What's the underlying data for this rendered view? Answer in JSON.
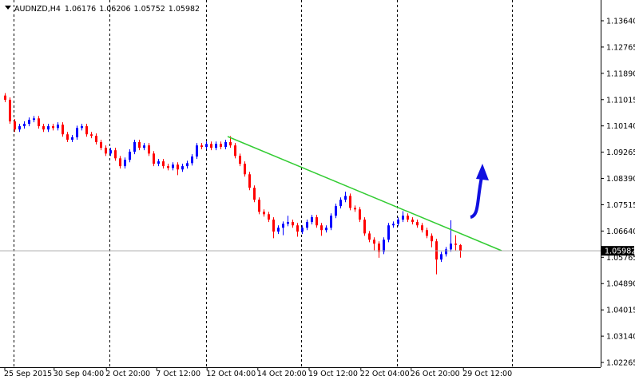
{
  "chart_data": {
    "type": "candlestick",
    "symbol": "AUDNZD,H4",
    "candles": [
      [
        1.1115,
        1.1123,
        1.1093,
        1.1101
      ],
      [
        1.1101,
        1.1109,
        1.1021,
        1.1029
      ],
      [
        1.1029,
        1.1037,
        1.0994,
        1.1002
      ],
      [
        1.1002,
        1.1021,
        1.0994,
        1.1013
      ],
      [
        1.1013,
        1.1029,
        1.1005,
        1.1021
      ],
      [
        1.1021,
        1.1042,
        1.1013,
        1.1034
      ],
      [
        1.1034,
        1.1047,
        1.1026,
        1.1039
      ],
      [
        1.1039,
        1.1047,
        1.1005,
        1.1013
      ],
      [
        1.1013,
        1.1021,
        1.0994,
        1.1002
      ],
      [
        1.1002,
        1.1021,
        1.0994,
        1.1013
      ],
      [
        1.1013,
        1.1021,
        1.0999,
        1.1007
      ],
      [
        1.1007,
        1.1026,
        1.0999,
        1.1018
      ],
      [
        1.1018,
        1.1026,
        1.0978,
        1.0986
      ],
      [
        1.0986,
        1.0994,
        1.096,
        1.0968
      ],
      [
        1.0968,
        1.0984,
        1.096,
        1.0976
      ],
      [
        1.0976,
        1.1015,
        1.0968,
        1.1007
      ],
      [
        1.1007,
        1.1021,
        1.0999,
        1.1013
      ],
      [
        1.1013,
        1.1021,
        1.0978,
        1.0986
      ],
      [
        1.0986,
        1.0994,
        1.0973,
        1.0981
      ],
      [
        1.0981,
        1.0989,
        1.0952,
        1.096
      ],
      [
        1.096,
        1.0968,
        1.0933,
        1.0941
      ],
      [
        1.0941,
        1.0949,
        1.0914,
        1.0922
      ],
      [
        1.0922,
        1.0941,
        1.0914,
        1.0933
      ],
      [
        1.0933,
        1.0941,
        1.0898,
        1.0906
      ],
      [
        1.0906,
        1.0914,
        1.0872,
        1.088
      ],
      [
        1.088,
        1.0909,
        1.0872,
        1.0901
      ],
      [
        1.0901,
        1.0936,
        1.0893,
        1.0928
      ],
      [
        1.0928,
        1.0968,
        1.092,
        1.096
      ],
      [
        1.096,
        1.0968,
        1.0933,
        1.0941
      ],
      [
        1.0941,
        1.0957,
        1.0933,
        1.0949
      ],
      [
        1.0949,
        1.0957,
        1.0914,
        1.0922
      ],
      [
        1.0922,
        1.093,
        1.088,
        1.0888
      ],
      [
        1.0888,
        1.0904,
        1.088,
        1.0896
      ],
      [
        1.0896,
        1.0904,
        1.0872,
        1.088
      ],
      [
        1.088,
        1.0888,
        1.0866,
        1.0874
      ],
      [
        1.0874,
        1.0893,
        1.0866,
        1.0885
      ],
      [
        1.0885,
        1.0893,
        1.085,
        1.0869
      ],
      [
        1.0869,
        1.0888,
        1.0861,
        1.088
      ],
      [
        1.088,
        1.0898,
        1.0872,
        1.089
      ],
      [
        1.089,
        1.092,
        1.0882,
        1.0912
      ],
      [
        1.0912,
        1.0957,
        1.0904,
        1.0949
      ],
      [
        1.0949,
        1.0957,
        1.0936,
        1.0944
      ],
      [
        1.0944,
        1.0962,
        1.0936,
        1.0954
      ],
      [
        1.0954,
        1.0962,
        1.0933,
        1.0941
      ],
      [
        1.0941,
        1.0962,
        1.0933,
        1.0954
      ],
      [
        1.0954,
        1.0962,
        1.0936,
        1.0944
      ],
      [
        1.0944,
        1.0968,
        1.0936,
        1.096
      ],
      [
        1.096,
        1.098,
        1.0941,
        1.0949
      ],
      [
        1.0949,
        1.0957,
        1.0906,
        1.0914
      ],
      [
        1.0914,
        1.0922,
        1.088,
        1.0888
      ],
      [
        1.0888,
        1.0896,
        1.0845,
        1.0853
      ],
      [
        1.0853,
        1.0861,
        1.08,
        1.0808
      ],
      [
        1.0808,
        1.0816,
        1.076,
        1.0768
      ],
      [
        1.0768,
        1.0776,
        1.072,
        1.0728
      ],
      [
        1.0728,
        1.0736,
        1.0712,
        1.072
      ],
      [
        1.072,
        1.0728,
        1.0694,
        1.0702
      ],
      [
        1.0702,
        1.071,
        1.064,
        1.0662
      ],
      [
        1.0662,
        1.0683,
        1.0654,
        1.0675
      ],
      [
        1.0675,
        1.0696,
        1.065,
        1.0688
      ],
      [
        1.0688,
        1.0715,
        1.068,
        1.0694
      ],
      [
        1.0694,
        1.0702,
        1.0675,
        1.0683
      ],
      [
        1.0683,
        1.0691,
        1.0645,
        1.0662
      ],
      [
        1.0662,
        1.0683,
        1.0654,
        1.0675
      ],
      [
        1.0675,
        1.0702,
        1.0667,
        1.0694
      ],
      [
        1.0694,
        1.0718,
        1.0686,
        1.071
      ],
      [
        1.071,
        1.0718,
        1.0675,
        1.0683
      ],
      [
        1.0683,
        1.0691,
        1.0648,
        1.0667
      ],
      [
        1.0667,
        1.0683,
        1.0659,
        1.0675
      ],
      [
        1.0675,
        1.0723,
        1.0667,
        1.0715
      ],
      [
        1.0715,
        1.0755,
        1.0707,
        1.0747
      ],
      [
        1.0747,
        1.0776,
        1.0739,
        1.0768
      ],
      [
        1.0768,
        1.0795,
        1.076,
        1.0781
      ],
      [
        1.0781,
        1.0789,
        1.0733,
        1.0741
      ],
      [
        1.0741,
        1.0749,
        1.0728,
        1.0736
      ],
      [
        1.0736,
        1.0744,
        1.0694,
        1.0702
      ],
      [
        1.0702,
        1.071,
        1.0648,
        1.0656
      ],
      [
        1.0656,
        1.0664,
        1.0627,
        1.0635
      ],
      [
        1.0635,
        1.0643,
        1.06,
        1.0622
      ],
      [
        1.0622,
        1.063,
        1.0575,
        1.0595
      ],
      [
        1.0595,
        1.0643,
        1.0587,
        1.0635
      ],
      [
        1.0635,
        1.0691,
        1.0627,
        1.0683
      ],
      [
        1.0683,
        1.0696,
        1.0675,
        1.0688
      ],
      [
        1.0688,
        1.071,
        1.068,
        1.0702
      ],
      [
        1.0702,
        1.073,
        1.0694,
        1.0715
      ],
      [
        1.0715,
        1.0723,
        1.0694,
        1.0702
      ],
      [
        1.0702,
        1.071,
        1.0686,
        1.0694
      ],
      [
        1.0694,
        1.0702,
        1.0675,
        1.0683
      ],
      [
        1.0683,
        1.0691,
        1.0659,
        1.0667
      ],
      [
        1.0667,
        1.0675,
        1.064,
        1.0648
      ],
      [
        1.0648,
        1.0656,
        1.061,
        1.063
      ],
      [
        1.063,
        1.0638,
        1.052,
        1.0569
      ],
      [
        1.0569,
        1.0595,
        1.0561,
        1.0587
      ],
      [
        1.0587,
        1.0611,
        1.0579,
        1.0603
      ],
      [
        1.0603,
        1.07,
        1.0595,
        1.0622
      ],
      [
        1.0622,
        1.065,
        1.06,
        1.0618
      ],
      [
        1.06176,
        1.06206,
        1.05752,
        1.05982
      ]
    ],
    "up_color": "#0000ff",
    "down_color": "#ff0000",
    "ylim": [
      1.02106,
      1.14331
    ],
    "yticks": [
      {
        "value": 1.1364,
        "label": "1.13640"
      },
      1.12765,
      {
        "value": 1.1189,
        "label": "1.11890"
      },
      1.11015,
      {
        "value": 1.1014,
        "label": "1.10140"
      },
      1.09265,
      {
        "value": 1.0839,
        "label": "1.08390"
      },
      1.07515,
      {
        "value": 1.0664,
        "label": "1.06640"
      },
      1.05765,
      {
        "value": 1.0489,
        "label": "1.04890"
      },
      1.04015,
      {
        "value": 1.0314,
        "label": "1.03140"
      },
      1.02265
    ],
    "xticks": [
      {
        "value": 0,
        "label": "25 Sep 2015"
      },
      {
        "value": 10.3,
        "label": "30 Sep 04:00"
      },
      {
        "value": 21.2,
        "label": "2 Oct 20:00"
      },
      {
        "value": 31.7,
        "label": "7 Oct 12:00"
      },
      {
        "value": 42.2,
        "label": "12 Oct 04:00"
      },
      {
        "value": 52.8,
        "label": "14 Oct 20:00"
      },
      {
        "value": 63.5,
        "label": "19 Oct 12:00"
      },
      {
        "value": 74.3,
        "label": "22 Oct 04:00"
      },
      {
        "value": 84.8,
        "label": "26 Oct 20:00"
      },
      {
        "value": 95.7,
        "label": "29 Oct 12:00"
      }
    ]
  }
}
